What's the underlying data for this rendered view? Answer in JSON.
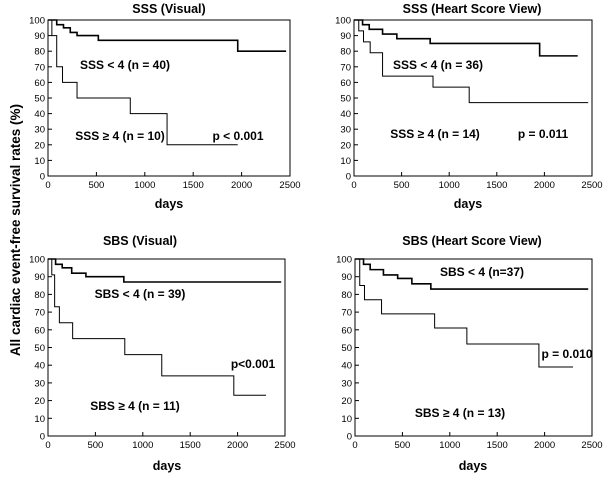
{
  "figure": {
    "shared_ylabel": "All cardiac event-free survival rates (%)"
  },
  "chart_data": [
    {
      "type": "line",
      "title": "SSS (Visual)",
      "xlabel": "days",
      "ylabel": "All cardiac event-free survival rates (%)",
      "xlim": [
        0,
        2500
      ],
      "ylim": [
        0,
        100
      ],
      "xticks": [
        0,
        500,
        1000,
        1500,
        2000,
        2500
      ],
      "yticks": [
        0,
        10,
        20,
        30,
        40,
        50,
        60,
        70,
        80,
        90,
        100
      ],
      "series": [
        {
          "name": "SSS < 4 (n = 40)",
          "label": "SSS < 4 (n = 40)",
          "stroke_width": 1.6,
          "x": [
            0,
            90,
            160,
            230,
            300,
            400,
            520,
            620,
            800,
            1200,
            1960,
            2460
          ],
          "y": [
            100,
            97,
            95,
            92,
            90,
            90,
            87,
            87,
            87,
            87,
            80,
            80
          ]
        },
        {
          "name": "SSS ≥ 4 (n = 10)",
          "label": "SSS ≥ 4 (n = 10)",
          "stroke_width": 1.0,
          "x": [
            0,
            40,
            90,
            150,
            300,
            850,
            1230,
            1960
          ],
          "y": [
            100,
            90,
            70,
            60,
            50,
            40,
            20,
            20
          ]
        }
      ],
      "annotations": [
        {
          "text": "p < 0.001"
        }
      ]
    },
    {
      "type": "line",
      "title": "SSS (Heart Score View)",
      "xlabel": "days",
      "ylabel": "All cardiac event-free survival rates (%)",
      "xlim": [
        0,
        2500
      ],
      "ylim": [
        0,
        100
      ],
      "xticks": [
        0,
        500,
        1000,
        1500,
        2000,
        2500
      ],
      "yticks": [
        0,
        10,
        20,
        30,
        40,
        50,
        60,
        70,
        80,
        90,
        100
      ],
      "series": [
        {
          "name": "SSS < 4 (n = 36)",
          "label": "SSS < 4 (n = 36)",
          "stroke_width": 1.6,
          "x": [
            0,
            90,
            160,
            300,
            450,
            600,
            800,
            1950,
            2350
          ],
          "y": [
            100,
            97,
            94,
            91,
            88,
            88,
            85,
            77,
            77
          ]
        },
        {
          "name": "SSS ≥ 4 (n = 14)",
          "label": "SSS ≥ 4 (n = 14)",
          "stroke_width": 1.0,
          "x": [
            0,
            50,
            100,
            170,
            300,
            830,
            1210,
            2460
          ],
          "y": [
            100,
            93,
            86,
            79,
            64,
            57,
            47,
            47
          ]
        }
      ],
      "annotations": [
        {
          "text": "p = 0.011"
        }
      ]
    },
    {
      "type": "line",
      "title": "SBS (Visual)",
      "xlabel": "days",
      "ylabel": "All cardiac event-free survival rates (%)",
      "xlim": [
        0,
        2500
      ],
      "ylim": [
        0,
        100
      ],
      "xticks": [
        0,
        500,
        1000,
        1500,
        2000,
        2500
      ],
      "yticks": [
        0,
        10,
        20,
        30,
        40,
        50,
        60,
        70,
        80,
        90,
        100
      ],
      "series": [
        {
          "name": "SBS < 4 (n = 39)",
          "label": "SBS < 4 (n = 39)",
          "stroke_width": 1.6,
          "x": [
            0,
            80,
            150,
            250,
            400,
            520,
            800,
            2460
          ],
          "y": [
            100,
            97,
            95,
            92,
            90,
            90,
            87,
            87
          ]
        },
        {
          "name": "SBS ≥ 4 (n = 11)",
          "label": "SBS ≥ 4 (n = 11)",
          "stroke_width": 1.0,
          "x": [
            0,
            40,
            70,
            120,
            260,
            810,
            1200,
            1960,
            2300
          ],
          "y": [
            100,
            91,
            73,
            64,
            55,
            46,
            34,
            23,
            23
          ]
        }
      ],
      "annotations": [
        {
          "text": "p<0.001"
        }
      ]
    },
    {
      "type": "line",
      "title": "SBS (Heart Score View)",
      "xlabel": "days",
      "ylabel": "All cardiac event-free survival rates (%)",
      "xlim": [
        0,
        2500
      ],
      "ylim": [
        0,
        100
      ],
      "xticks": [
        0,
        500,
        1000,
        1500,
        2000,
        2500
      ],
      "yticks": [
        0,
        10,
        20,
        30,
        40,
        50,
        60,
        70,
        80,
        90,
        100
      ],
      "series": [
        {
          "name": "SBS < 4 (n=37)",
          "label": "SBS < 4 (n=37)",
          "stroke_width": 1.6,
          "x": [
            0,
            90,
            160,
            300,
            450,
            600,
            800,
            2460
          ],
          "y": [
            100,
            97,
            94,
            91,
            89,
            86,
            83,
            83
          ]
        },
        {
          "name": "SBS ≥ 4 (n = 13)",
          "label": "SBS ≥ 4 (n = 13)",
          "stroke_width": 1.0,
          "x": [
            0,
            50,
            100,
            280,
            840,
            1180,
            1940,
            2300
          ],
          "y": [
            100,
            85,
            77,
            69,
            61,
            52,
            39,
            39
          ]
        }
      ],
      "annotations": [
        {
          "text": "p = 0.010"
        }
      ]
    }
  ]
}
